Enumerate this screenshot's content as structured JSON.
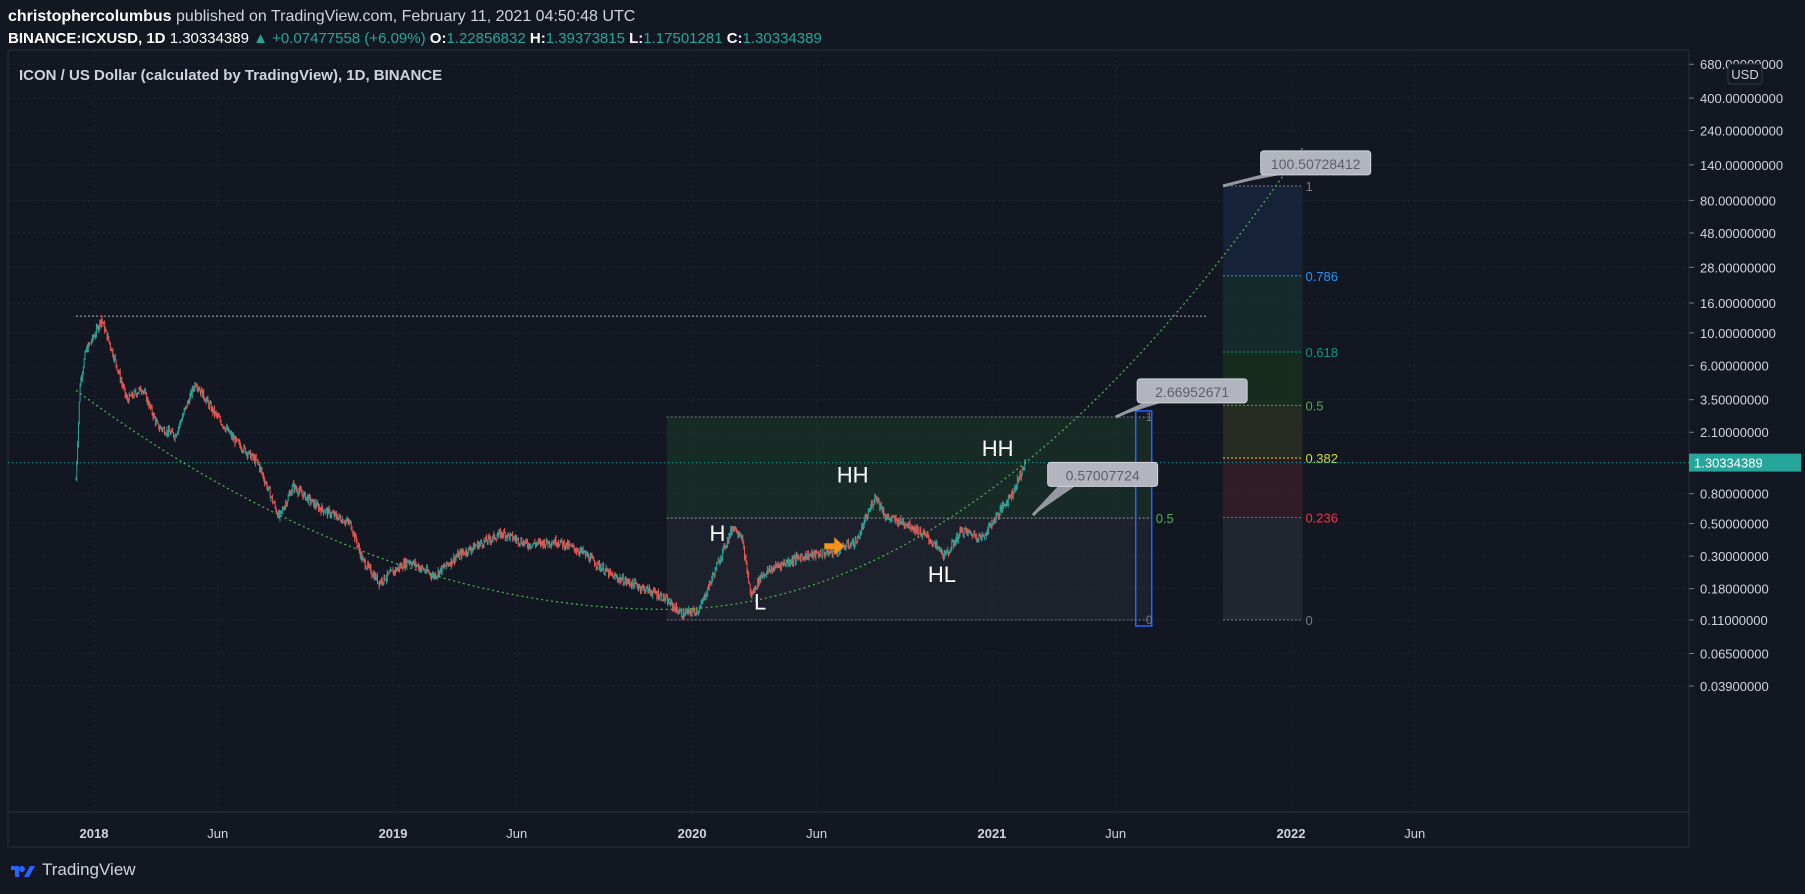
{
  "header": {
    "author": "christophercolumbus",
    "published": "published on TradingView.com, February 11, 2021 04:50:48 UTC",
    "symbol": "BINANCE:ICXUSD, 1D",
    "last": "1.30334389",
    "change_arrow": "▲",
    "change": "+0.07477558 (+6.09%)",
    "o_label": "O:",
    "o_value": "1.22856832",
    "h_label": "H:",
    "h_value": "1.39373815",
    "l_label": "L:",
    "l_value": "1.17501281",
    "c_label": "C:",
    "c_value": "1.30334389"
  },
  "legend_title": "ICON / US Dollar (calculated by TradingView), 1D, BINANCE",
  "footer": {
    "brand": "TradingView",
    "logo_icon": "tradingview-logo-icon"
  },
  "colors": {
    "background": "#131722",
    "up": "#26a69a",
    "down": "#ef5350",
    "curve": "#4caf50",
    "fib_one": "#2962ff",
    "last_price": "#26a69a"
  },
  "chart_data": {
    "type": "candlestick",
    "title": "ICON / US Dollar (calculated by TradingView), 1D, BINANCE",
    "x_ticks": [
      "2018",
      "Jun",
      "2019",
      "Jun",
      "2020",
      "Jun",
      "2021",
      "Jun",
      "2022",
      "Jun"
    ],
    "y_scale": "log",
    "y_unit": "USD",
    "y_ticks": [
      "680.00000000",
      "400.00000000",
      "240.00000000",
      "140.00000000",
      "80.00000000",
      "48.00000000",
      "28.00000000",
      "16.00000000",
      "10.00000000",
      "6.00000000",
      "3.50000000",
      "2.10000000",
      "1.30000000",
      "0.80000000",
      "0.50000000",
      "0.30000000",
      "0.18000000",
      "0.11000000",
      "0.06500000",
      "0.03900000"
    ],
    "last_price_label": "1.30334389",
    "price_path": [
      [
        "2017-12-10",
        1.0
      ],
      [
        "2017-12-15",
        4.5
      ],
      [
        "2017-12-22",
        7.5
      ],
      [
        "2018-01-01",
        9.5
      ],
      [
        "2018-01-10",
        12.5
      ],
      [
        "2018-01-25",
        7.0
      ],
      [
        "2018-02-10",
        3.5
      ],
      [
        "2018-03-01",
        4.2
      ],
      [
        "2018-03-20",
        2.3
      ],
      [
        "2018-04-10",
        2.0
      ],
      [
        "2018-05-05",
        4.6
      ],
      [
        "2018-05-25",
        3.0
      ],
      [
        "2018-06-20",
        1.9
      ],
      [
        "2018-07-20",
        1.3
      ],
      [
        "2018-08-15",
        0.55
      ],
      [
        "2018-09-01",
        0.9
      ],
      [
        "2018-10-01",
        0.65
      ],
      [
        "2018-11-10",
        0.5
      ],
      [
        "2018-11-25",
        0.28
      ],
      [
        "2018-12-15",
        0.2
      ],
      [
        "2019-01-20",
        0.28
      ],
      [
        "2019-02-20",
        0.22
      ],
      [
        "2019-03-20",
        0.3
      ],
      [
        "2019-04-15",
        0.36
      ],
      [
        "2019-05-15",
        0.43
      ],
      [
        "2019-06-15",
        0.36
      ],
      [
        "2019-07-20",
        0.38
      ],
      [
        "2019-08-20",
        0.32
      ],
      [
        "2019-09-25",
        0.22
      ],
      [
        "2019-10-25",
        0.19
      ],
      [
        "2019-11-25",
        0.16
      ],
      [
        "2019-12-20",
        0.12
      ],
      [
        "2020-01-10",
        0.13
      ],
      [
        "2020-02-05",
        0.3
      ],
      [
        "2020-02-20",
        0.48
      ],
      [
        "2020-03-01",
        0.42
      ],
      [
        "2020-03-13",
        0.16
      ],
      [
        "2020-03-25",
        0.22
      ],
      [
        "2020-04-15",
        0.26
      ],
      [
        "2020-05-15",
        0.3
      ],
      [
        "2020-06-20",
        0.32
      ],
      [
        "2020-07-20",
        0.38
      ],
      [
        "2020-08-12",
        0.78
      ],
      [
        "2020-08-25",
        0.55
      ],
      [
        "2020-09-20",
        0.5
      ],
      [
        "2020-10-15",
        0.4
      ],
      [
        "2020-11-05",
        0.3
      ],
      [
        "2020-11-25",
        0.45
      ],
      [
        "2020-12-20",
        0.4
      ],
      [
        "2021-01-10",
        0.6
      ],
      [
        "2021-01-28",
        0.85
      ],
      [
        "2021-02-05",
        1.1
      ],
      [
        "2021-02-11",
        1.30334389
      ]
    ],
    "annotations": [
      {
        "text": "H",
        "x": "2020-02-01",
        "y": 0.38
      },
      {
        "text": "L",
        "x": "2020-03-24",
        "y": 0.13
      },
      {
        "text": "HH",
        "x": "2020-07-15",
        "y": 0.95
      },
      {
        "text": "HL",
        "x": "2020-11-01",
        "y": 0.2
      },
      {
        "text": "HH",
        "x": "2021-01-08",
        "y": 1.45
      }
    ],
    "callouts": [
      "2.66952671",
      "0.57007724",
      "100.50728412"
    ],
    "resistance_line": 13.0,
    "fib_box_small": {
      "from": "2019-12-01",
      "to": "2021-07-15",
      "low": 0.11,
      "high": 2.66952671,
      "levels": [
        {
          "label": "1",
          "value": 2.66952671
        },
        {
          "label": "0.5",
          "value": 0.545
        },
        {
          "label": "0",
          "value": 0.11
        }
      ]
    },
    "fib_box_large": {
      "from": "2021-10-10",
      "to": "2022-01-15",
      "levels": [
        {
          "label": "1",
          "value": 100.50728412,
          "color": "#787b86"
        },
        {
          "label": "0.786",
          "value": 24.5,
          "color": "#2196f3"
        },
        {
          "label": "0.618",
          "value": 7.4,
          "color": "#089981"
        },
        {
          "label": "0.5",
          "value": 3.2,
          "color": "#4caf50"
        },
        {
          "label": "0.382",
          "value": 1.4,
          "color": "#cddc39"
        },
        {
          "label": "0.236",
          "value": 0.55,
          "color": "#f23645"
        },
        {
          "label": "0",
          "value": 0.11,
          "color": "#787b86"
        }
      ]
    }
  }
}
